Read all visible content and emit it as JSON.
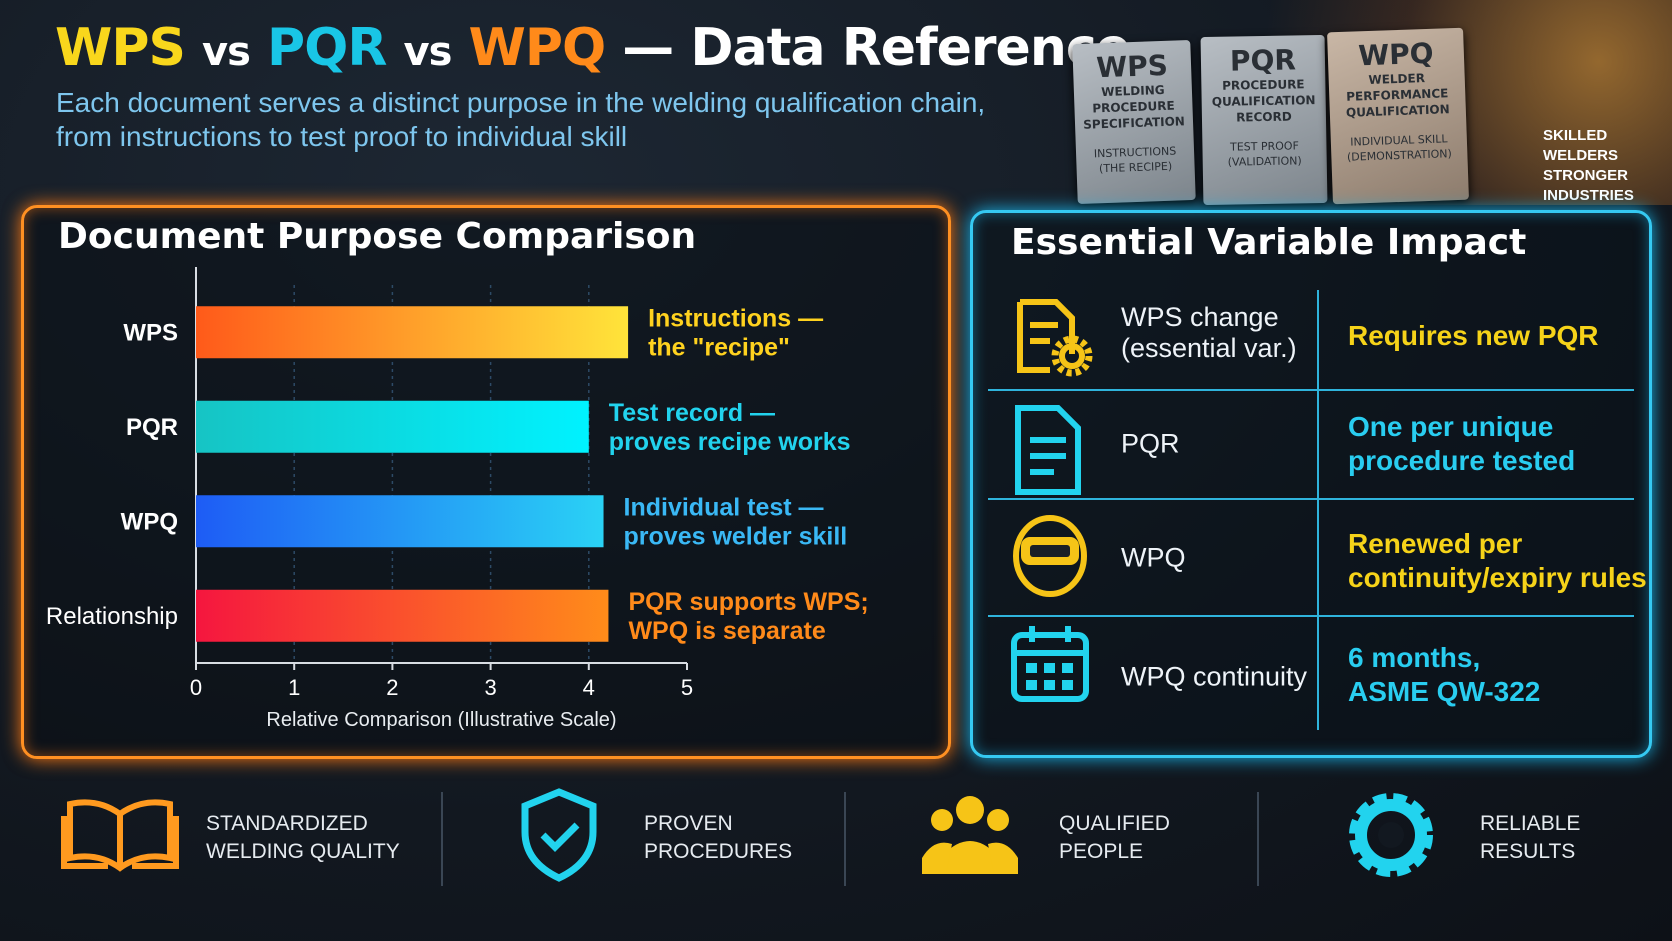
{
  "header": {
    "title_parts": [
      "WPS",
      "vs",
      "PQR",
      "vs",
      "WPQ",
      "— Data Reference"
    ],
    "subtitle_lines": [
      "Each document serves a distinct purpose in the welding qualification chain,",
      "from instructions to test proof to individual skill"
    ]
  },
  "hero": {
    "plates": [
      {
        "code": "WPS",
        "name_lines": [
          "WELDING",
          "PROCEDURE",
          "SPECIFICATION"
        ],
        "note_lines": [
          "INSTRUCTIONS",
          "(THE RECIPE)"
        ]
      },
      {
        "code": "PQR",
        "name_lines": [
          "PROCEDURE",
          "QUALIFICATION",
          "RECORD"
        ],
        "note_lines": [
          "TEST PROOF",
          "(VALIDATION)"
        ]
      },
      {
        "code": "WPQ",
        "name_lines": [
          "WELDER",
          "PERFORMANCE",
          "QUALIFICATION"
        ],
        "note_lines": [
          "INDIVIDUAL SKILL",
          "(DEMONSTRATION)"
        ]
      }
    ],
    "tagline_lines": [
      "SKILLED",
      "WELDERS",
      "STRONGER",
      "INDUSTRIES"
    ]
  },
  "chart_data": {
    "type": "bar",
    "orientation": "horizontal",
    "title": "Document Purpose Comparison",
    "categories": [
      "WPS",
      "PQR",
      "WPQ",
      "Relationship"
    ],
    "values": [
      4.4,
      4.0,
      4.15,
      4.2
    ],
    "colors": [
      [
        "#ff5a1a",
        "#ffe43a"
      ],
      [
        "#16c4c4",
        "#00f2ff"
      ],
      [
        "#1e5cf5",
        "#2ad2f5"
      ],
      [
        "#f5163f",
        "#ff8c1a"
      ]
    ],
    "annotations": [
      [
        "Instructions —",
        "the \"recipe\""
      ],
      [
        "Test record —",
        "proves recipe works"
      ],
      [
        "Individual test —",
        "proves welder skill"
      ],
      [
        "PQR supports WPS;",
        "WPQ is separate"
      ]
    ],
    "annotation_colors": [
      "#ffd21f",
      "#22d3ee",
      "#3ab8f5",
      "#ff8a1a"
    ],
    "xlim": [
      0,
      5
    ],
    "xticks": [
      0,
      1,
      2,
      3,
      4,
      5
    ],
    "x_label": "Relative Comparison (Illustrative Scale)",
    "grid": true
  },
  "impact_table": {
    "title": "Essential Variable Impact",
    "rows": [
      {
        "change_lines": [
          "WPS change",
          "(essential var.)"
        ],
        "effect_lines": [
          "Requires new PQR"
        ]
      },
      {
        "change_lines": [
          "PQR"
        ],
        "effect_lines": [
          "One per unique",
          "procedure tested"
        ]
      },
      {
        "change_lines": [
          "WPQ"
        ],
        "effect_lines": [
          "Renewed per",
          "continuity/expiry rules"
        ]
      },
      {
        "change_lines": [
          "WPQ continuity"
        ],
        "effect_lines": [
          "6 months,",
          "ASME QW-322"
        ]
      }
    ]
  },
  "footer": {
    "items": [
      {
        "lines": [
          "STANDARDIZED",
          "WELDING QUALITY"
        ]
      },
      {
        "lines": [
          "PROVEN",
          "PROCEDURES"
        ]
      },
      {
        "lines": [
          "QUALIFIED",
          "PEOPLE"
        ]
      },
      {
        "lines": [
          "RELIABLE",
          "RESULTS"
        ]
      }
    ]
  }
}
